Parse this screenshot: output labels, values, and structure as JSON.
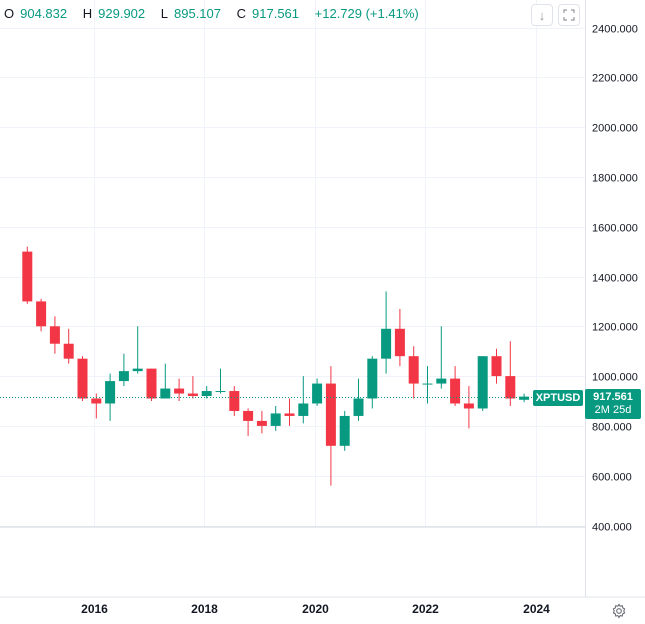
{
  "ohlc": {
    "open_key": "O",
    "open": "904.832",
    "high_key": "H",
    "high": "929.902",
    "low_key": "L",
    "low": "895.107",
    "close_key": "C",
    "close": "917.561",
    "change": "+12.729 (+1.41%)"
  },
  "toolbar": {
    "scroll_icon": "arrow-down-icon",
    "fullscreen_icon": "fullscreen-icon"
  },
  "symbol": "XPTUSD",
  "last_price": "917.561",
  "countdown": "2M 25d",
  "settings_icon": "gear-icon",
  "colors": {
    "up": "#089981",
    "down": "#f23645",
    "grid": "#f0f3fa",
    "axis_text": "#131722"
  },
  "chart_data": {
    "type": "candlestick",
    "x_tick_labels": [
      "2016",
      "2018",
      "2020",
      "2022",
      "2024"
    ],
    "y_tick_labels": [
      "400.000",
      "600.000",
      "800.000",
      "1000.000",
      "1200.000",
      "1400.000",
      "1600.000",
      "1800.000",
      "2000.000",
      "2200.000",
      "2400.000"
    ],
    "ylim": [
      400,
      2400
    ],
    "grid": true,
    "last_price_line": 917.561,
    "candles": [
      {
        "t": "2014-09",
        "o": 1500,
        "h": 1520,
        "l": 1290,
        "c": 1300
      },
      {
        "t": "2014-12",
        "o": 1300,
        "h": 1310,
        "l": 1180,
        "c": 1200
      },
      {
        "t": "2015-03",
        "o": 1200,
        "h": 1240,
        "l": 1090,
        "c": 1130
      },
      {
        "t": "2015-06",
        "o": 1130,
        "h": 1190,
        "l": 1050,
        "c": 1070
      },
      {
        "t": "2015-09",
        "o": 1070,
        "h": 1080,
        "l": 900,
        "c": 910
      },
      {
        "t": "2015-12",
        "o": 910,
        "h": 930,
        "l": 830,
        "c": 890
      },
      {
        "t": "2016-03",
        "o": 890,
        "h": 1010,
        "l": 820,
        "c": 980
      },
      {
        "t": "2016-06",
        "o": 980,
        "h": 1090,
        "l": 960,
        "c": 1020
      },
      {
        "t": "2016-09",
        "o": 1020,
        "h": 1200,
        "l": 1010,
        "c": 1030
      },
      {
        "t": "2016-12",
        "o": 1030,
        "h": 1030,
        "l": 900,
        "c": 910
      },
      {
        "t": "2017-03",
        "o": 910,
        "h": 1050,
        "l": 910,
        "c": 950
      },
      {
        "t": "2017-06",
        "o": 950,
        "h": 990,
        "l": 900,
        "c": 930
      },
      {
        "t": "2017-09",
        "o": 930,
        "h": 1000,
        "l": 910,
        "c": 920
      },
      {
        "t": "2017-12",
        "o": 920,
        "h": 960,
        "l": 910,
        "c": 940
      },
      {
        "t": "2018-03",
        "o": 940,
        "h": 1030,
        "l": 930,
        "c": 940
      },
      {
        "t": "2018-06",
        "o": 940,
        "h": 960,
        "l": 840,
        "c": 860
      },
      {
        "t": "2018-09",
        "o": 860,
        "h": 870,
        "l": 760,
        "c": 820
      },
      {
        "t": "2018-12",
        "o": 820,
        "h": 860,
        "l": 770,
        "c": 800
      },
      {
        "t": "2019-03",
        "o": 800,
        "h": 880,
        "l": 780,
        "c": 850
      },
      {
        "t": "2019-06",
        "o": 850,
        "h": 910,
        "l": 800,
        "c": 840
      },
      {
        "t": "2019-09",
        "o": 840,
        "h": 1000,
        "l": 810,
        "c": 890
      },
      {
        "t": "2019-12",
        "o": 890,
        "h": 990,
        "l": 880,
        "c": 970
      },
      {
        "t": "2020-03",
        "o": 970,
        "h": 1040,
        "l": 560,
        "c": 720
      },
      {
        "t": "2020-06",
        "o": 720,
        "h": 860,
        "l": 700,
        "c": 840
      },
      {
        "t": "2020-09",
        "o": 840,
        "h": 990,
        "l": 820,
        "c": 910
      },
      {
        "t": "2020-12",
        "o": 910,
        "h": 1080,
        "l": 870,
        "c": 1070
      },
      {
        "t": "2021-03",
        "o": 1070,
        "h": 1340,
        "l": 1010,
        "c": 1190
      },
      {
        "t": "2021-06",
        "o": 1190,
        "h": 1270,
        "l": 1040,
        "c": 1080
      },
      {
        "t": "2021-09",
        "o": 1080,
        "h": 1120,
        "l": 910,
        "c": 970
      },
      {
        "t": "2021-12",
        "o": 970,
        "h": 1040,
        "l": 890,
        "c": 970
      },
      {
        "t": "2022-03",
        "o": 970,
        "h": 1200,
        "l": 950,
        "c": 990
      },
      {
        "t": "2022-06",
        "o": 990,
        "h": 1040,
        "l": 880,
        "c": 890
      },
      {
        "t": "2022-09",
        "o": 890,
        "h": 960,
        "l": 790,
        "c": 870
      },
      {
        "t": "2022-12",
        "o": 870,
        "h": 1080,
        "l": 860,
        "c": 1080
      },
      {
        "t": "2023-03",
        "o": 1080,
        "h": 1110,
        "l": 970,
        "c": 1000
      },
      {
        "t": "2023-06",
        "o": 1000,
        "h": 1140,
        "l": 880,
        "c": 910
      },
      {
        "t": "2023-09",
        "o": 904.832,
        "h": 929.902,
        "l": 895.107,
        "c": 917.561
      }
    ]
  }
}
